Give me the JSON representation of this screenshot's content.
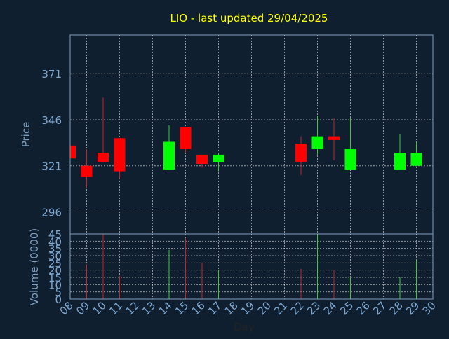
{
  "chart_data": {
    "type": "candlestick",
    "title": "LIO - last updated 29/04/2025",
    "xlabel": "Day",
    "price_ylabel": "Price",
    "volume_ylabel": "Volume (0000)",
    "x_ticks": [
      "08",
      "09",
      "10",
      "11",
      "12",
      "13",
      "14",
      "15",
      "16",
      "17",
      "18",
      "19",
      "20",
      "21",
      "22",
      "23",
      "24",
      "25",
      "26",
      "27",
      "28",
      "29",
      "30"
    ],
    "price_ticks": [
      296,
      321,
      346,
      371
    ],
    "price_ylim": [
      284,
      392
    ],
    "volume_ticks": [
      0,
      5,
      10,
      15,
      20,
      25,
      30,
      35,
      40,
      45
    ],
    "volume_ylim": [
      0,
      45
    ],
    "grid": true,
    "colors": {
      "background": "#0f1f30",
      "axis": "#7f9fbf",
      "title": "#ffff00",
      "label": "#7f9fbf",
      "tick": "#7fa8d0",
      "up": "#00ff00",
      "down": "#ff0000",
      "up_wick": "#33cc33",
      "down_wick": "#cc2222",
      "grid": "#c8c8c8"
    },
    "candles": [
      {
        "day": "08",
        "open": 332,
        "high": 334,
        "low": 325,
        "close": 325,
        "volume": 0
      },
      {
        "day": "09",
        "open": 321,
        "high": 330,
        "low": 309,
        "close": 315,
        "volume": 24
      },
      {
        "day": "10",
        "open": 328,
        "high": 358,
        "low": 323,
        "close": 323,
        "volume": 45
      },
      {
        "day": "11",
        "open": 336,
        "high": 336,
        "low": 314,
        "close": 318,
        "volume": 16
      },
      {
        "day": "14",
        "open": 319,
        "high": 343,
        "low": 319,
        "close": 334,
        "volume": 34
      },
      {
        "day": "15",
        "open": 342,
        "high": 342,
        "low": 328,
        "close": 330,
        "volume": 42
      },
      {
        "day": "16",
        "open": 327,
        "high": 327,
        "low": 320,
        "close": 322,
        "volume": 25
      },
      {
        "day": "17",
        "open": 323,
        "high": 328,
        "low": 318,
        "close": 327,
        "volume": 20
      },
      {
        "day": "22",
        "open": 333,
        "high": 337,
        "low": 316,
        "close": 323,
        "volume": 21
      },
      {
        "day": "23",
        "open": 330,
        "high": 348,
        "low": 327,
        "close": 337,
        "volume": 45
      },
      {
        "day": "24",
        "open": 337,
        "high": 347,
        "low": 324,
        "close": 335,
        "volume": 20
      },
      {
        "day": "25",
        "open": 319,
        "high": 347,
        "low": 319,
        "close": 330,
        "volume": 15
      },
      {
        "day": "28",
        "open": 319,
        "high": 338,
        "low": 319,
        "close": 328,
        "volume": 15
      },
      {
        "day": "29",
        "open": 321,
        "high": 334,
        "low": 321,
        "close": 328,
        "volume": 27
      }
    ]
  }
}
